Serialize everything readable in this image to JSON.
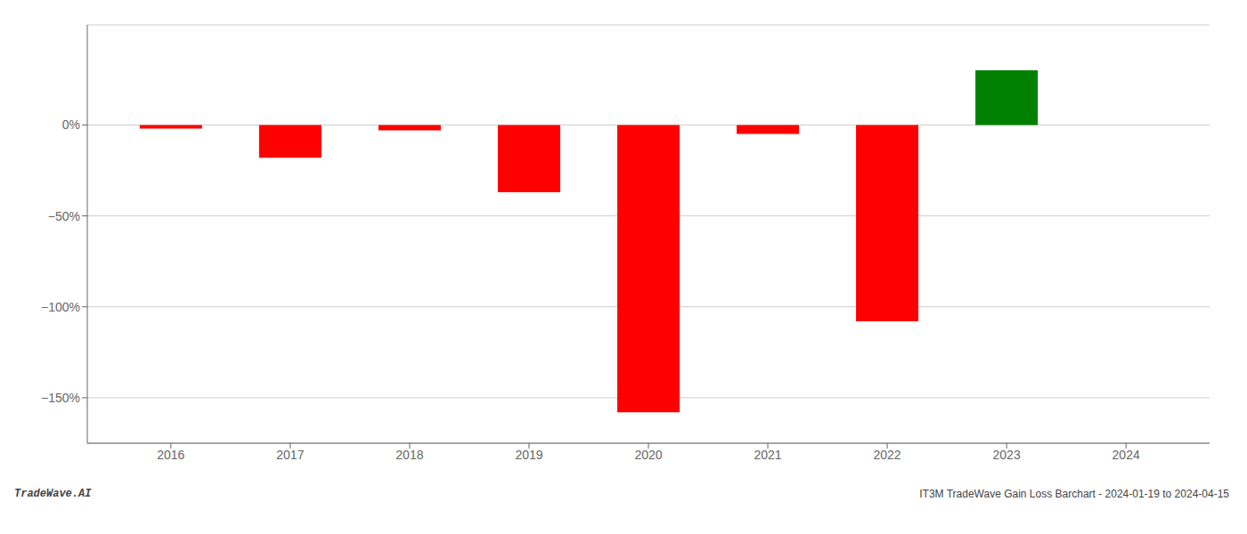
{
  "chart_data": {
    "type": "bar",
    "x": [
      2016,
      2017,
      2018,
      2019,
      2020,
      2021,
      2022,
      2023
    ],
    "values": [
      -2.0,
      -18.0,
      -3.0,
      -37.0,
      -158.0,
      -5.0,
      -108.0,
      30.0
    ],
    "colors": [
      "#ff0000",
      "#ff0000",
      "#ff0000",
      "#ff0000",
      "#ff0000",
      "#ff0000",
      "#ff0000",
      "#008000"
    ],
    "xlim": [
      2015.3,
      2024.7
    ],
    "xticks": [
      2016,
      2017,
      2018,
      2019,
      2020,
      2021,
      2022,
      2023,
      2024
    ],
    "ylim": [
      -175,
      55
    ],
    "yticks": [
      {
        "value": 0,
        "label": "0%"
      },
      {
        "value": -50,
        "label": "−50%"
      },
      {
        "value": -100,
        "label": "−100%"
      },
      {
        "value": -150,
        "label": "−150%"
      }
    ],
    "grid": true,
    "annotations": [
      "TradeWave.AI",
      "IT3M TradeWave Gain Loss Barchart - 2024-01-19 to 2024-04-15"
    ]
  }
}
